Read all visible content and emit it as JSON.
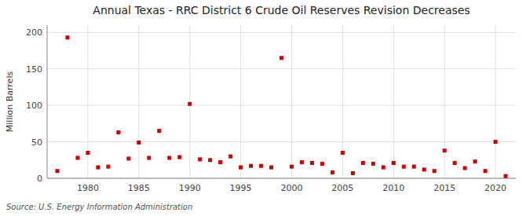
{
  "chart_data": {
    "type": "scatter",
    "title": "Annual Texas - RRC District 6 Crude Oil Reserves Revision Decreases",
    "ylabel": "Million Barrels",
    "source": "Source: U.S. Energy Information Administration",
    "x": [
      1977,
      1978,
      1979,
      1980,
      1981,
      1982,
      1983,
      1984,
      1985,
      1986,
      1987,
      1988,
      1989,
      1990,
      1991,
      1992,
      1993,
      1994,
      1995,
      1996,
      1997,
      1998,
      1999,
      2000,
      2001,
      2002,
      2003,
      2004,
      2005,
      2006,
      2007,
      2008,
      2009,
      2010,
      2011,
      2012,
      2013,
      2014,
      2015,
      2016,
      2017,
      2018,
      2019,
      2020,
      2021
    ],
    "values": [
      10,
      193,
      28,
      35,
      15,
      16,
      63,
      27,
      49,
      28,
      65,
      28,
      29,
      102,
      26,
      25,
      22,
      30,
      15,
      17,
      17,
      15,
      165,
      16,
      22,
      21,
      20,
      8,
      35,
      7,
      21,
      20,
      15,
      21,
      16,
      16,
      12,
      10,
      38,
      21,
      14,
      23,
      10,
      50,
      3
    ],
    "color": "#cc0000",
    "marker": "square",
    "xlim": [
      1976,
      2022
    ],
    "ylim": [
      0,
      210
    ],
    "xticks": [
      1980,
      1985,
      1990,
      1995,
      2000,
      2005,
      2010,
      2015,
      2020
    ],
    "yticks": [
      0,
      50,
      100,
      150,
      200
    ],
    "grid": true
  }
}
